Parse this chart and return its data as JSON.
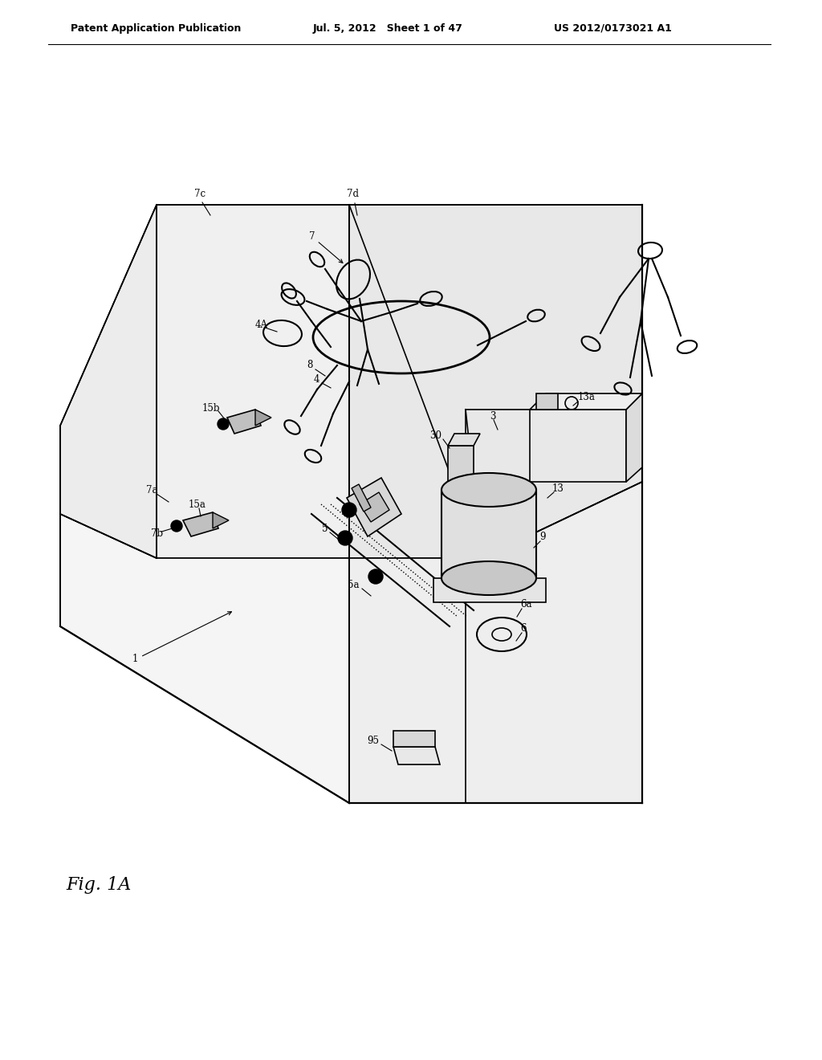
{
  "bg_color": "#ffffff",
  "header_left": "Patent Application Publication",
  "header_mid": "Jul. 5, 2012   Sheet 1 of 47",
  "header_right": "US 2012/0173021 A1",
  "fig_label": "Fig. 1A",
  "header_fontsize": 9,
  "fig_label_fontsize": 16,
  "label_fontsize": 8.5
}
